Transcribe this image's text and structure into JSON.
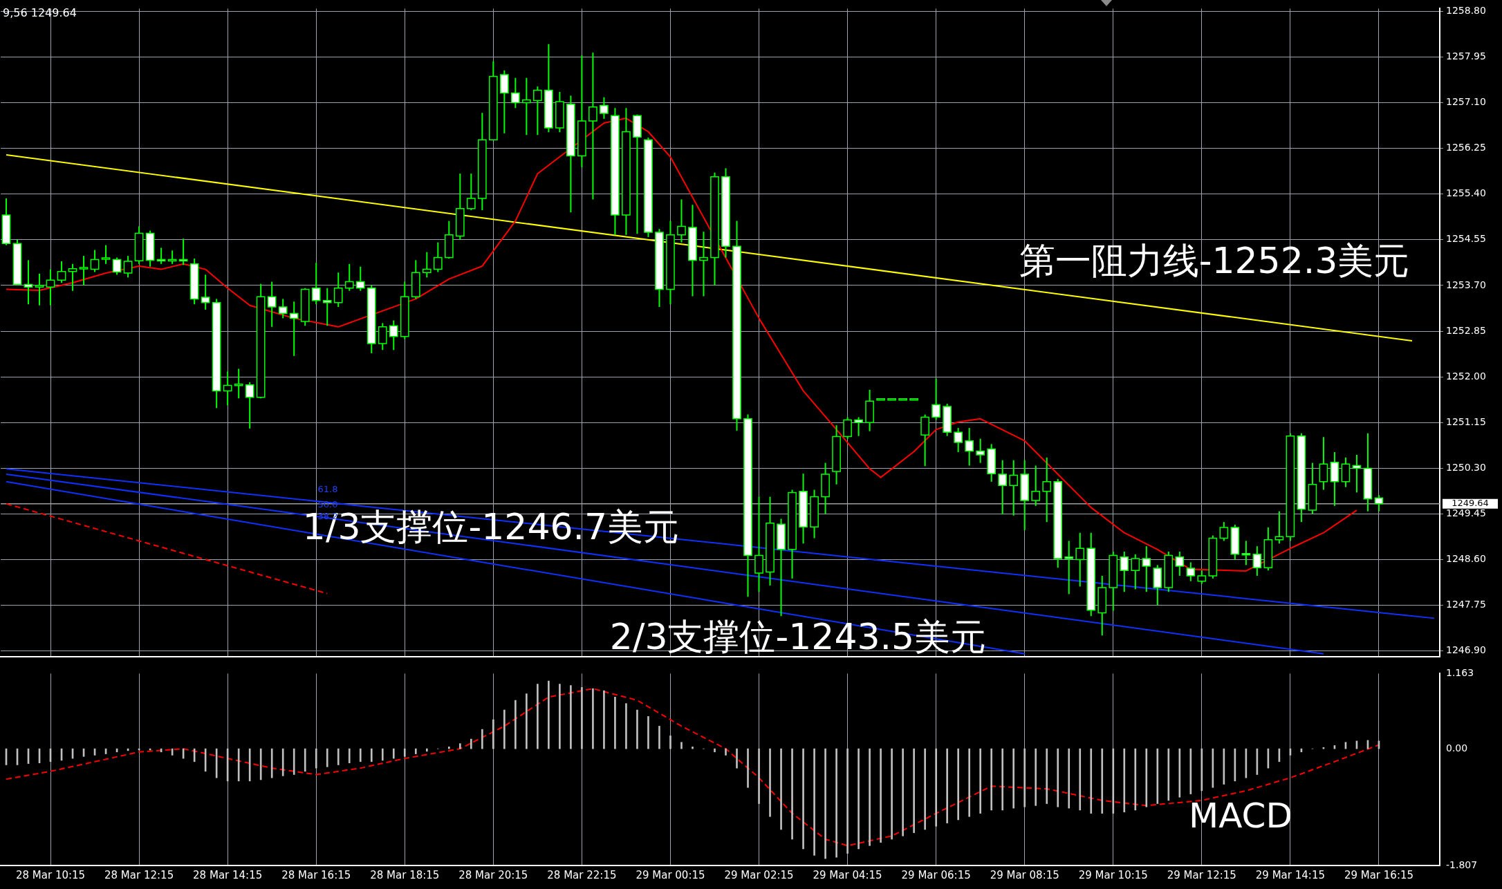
{
  "chart_data": [
    {
      "type": "candlestick",
      "color": "#00ff00",
      "colors": [
        "#ffffff",
        "#ffffff",
        "#ffffff",
        "#000000",
        "#000000",
        "#000000",
        "#000000",
        "#000000",
        "#000000",
        "#000000",
        "#ffffff",
        "#000000",
        "#000000",
        "#ffffff",
        "#ffffff",
        "#000000",
        "#ffffff",
        "#ffffff",
        "#ffffff",
        "#ffffff",
        "#000000",
        "#000000",
        "#ffffff",
        "#000000",
        "#ffffff",
        "#ffffff",
        "#ffffff",
        "#000000",
        "#ffffff",
        "#ffffff",
        "#000000",
        "#000000",
        "#ffffff",
        "#ffffff",
        "#000000",
        "#ffffff",
        "#000000",
        "#000000",
        "#000000",
        "#000000",
        "#000000",
        "#000000",
        "#000000",
        "#000000",
        "#000000",
        "#ffffff",
        "#ffffff",
        "#000000",
        "#000000",
        "#ffffff",
        "#000000",
        "#ffffff",
        "#000000",
        "#000000",
        "#ffffff",
        "#ffffff",
        "#000000",
        "#ffffff",
        "#ffffff",
        "#ffffff",
        "#000000",
        "#000000",
        "#ffffff",
        "#000000",
        "#000000",
        "#ffffff",
        "#ffffff",
        "#ffffff",
        "#000000",
        "#000000",
        "#ffffff",
        "#000000",
        "#ffffff",
        "#000000",
        "#000000",
        "#000000",
        "#000000",
        "#ffffff",
        "#000000",
        "#000000",
        "#000000",
        "#000000",
        "#000000",
        "#000000",
        "#ffffff",
        "#ffffff",
        "#ffffff",
        "#ffffff",
        "#ffffff",
        "#ffffff",
        "#ffffff",
        "#000000",
        "#ffffff",
        "#000000",
        "#000000",
        "#ffffff",
        "#ffffff",
        "#000000",
        "#ffffff",
        "#000000",
        "#000000",
        "#ffffff",
        "#000000",
        "#ffffff",
        "#ffffff",
        "#000000",
        "#ffffff",
        "#ffffff",
        "#000000",
        "#000000",
        "#000000",
        "#ffffff",
        "#ffffff",
        "#ffffff",
        "#000000",
        "#000000",
        "#000000",
        "#ffffff",
        "#000000",
        "#000000",
        "#ffffff",
        "#000000",
        "#ffffff",
        "#ffffff",
        "#ffffff",
        null,
        null,
        null,
        null,
        null
      ],
      "ohlc": [
        [
          1255.01,
          1255.32,
          1254.45,
          1254.48
        ],
        [
          1254.48,
          1254.55,
          1253.7,
          1253.72
        ],
        [
          1253.72,
          1254.17,
          1253.35,
          1253.67
        ],
        [
          1253.67,
          1253.92,
          1253.33,
          1253.7
        ],
        [
          1253.67,
          1254.0,
          1253.33,
          1253.8
        ],
        [
          1253.8,
          1254.15,
          1253.75,
          1253.96
        ],
        [
          1253.96,
          1254.1,
          1253.6,
          1254.01
        ],
        [
          1254.01,
          1254.25,
          1253.7,
          1254.02
        ],
        [
          1254.0,
          1254.36,
          1253.95,
          1254.18
        ],
        [
          1254.18,
          1254.45,
          1254.1,
          1254.2
        ],
        [
          1254.18,
          1254.22,
          1253.9,
          1253.95
        ],
        [
          1253.93,
          1254.25,
          1253.85,
          1254.15
        ],
        [
          1254.16,
          1254.8,
          1254.1,
          1254.67
        ],
        [
          1254.67,
          1254.72,
          1254.05,
          1254.17
        ],
        [
          1254.17,
          1254.4,
          1254.1,
          1254.15
        ],
        [
          1254.15,
          1254.35,
          1254.1,
          1254.17
        ],
        [
          1254.17,
          1254.57,
          1254.08,
          1254.15
        ],
        [
          1254.1,
          1254.2,
          1253.35,
          1253.45
        ],
        [
          1253.48,
          1253.9,
          1253.25,
          1253.38
        ],
        [
          1253.38,
          1253.45,
          1251.42,
          1251.74
        ],
        [
          1251.74,
          1252.1,
          1251.47,
          1251.84
        ],
        [
          1251.84,
          1252.15,
          1251.6,
          1251.85
        ],
        [
          1251.85,
          1251.9,
          1251.04,
          1251.62
        ],
        [
          1251.62,
          1253.73,
          1251.6,
          1253.49
        ],
        [
          1253.49,
          1253.77,
          1252.93,
          1253.3
        ],
        [
          1253.3,
          1253.45,
          1253.09,
          1253.18
        ],
        [
          1253.18,
          1253.4,
          1252.39,
          1253.09
        ],
        [
          1253.03,
          1253.65,
          1252.95,
          1253.63
        ],
        [
          1253.65,
          1254.12,
          1253.35,
          1253.42
        ],
        [
          1253.42,
          1253.65,
          1252.95,
          1253.38
        ],
        [
          1253.38,
          1253.94,
          1253.3,
          1253.65
        ],
        [
          1253.65,
          1254.1,
          1253.6,
          1253.77
        ],
        [
          1253.77,
          1254.05,
          1253.6,
          1253.65
        ],
        [
          1253.65,
          1253.7,
          1252.44,
          1252.62
        ],
        [
          1252.62,
          1253.0,
          1252.5,
          1252.93
        ],
        [
          1252.95,
          1253.05,
          1252.5,
          1252.75
        ],
        [
          1252.75,
          1253.77,
          1252.7,
          1253.49
        ],
        [
          1253.49,
          1254.17,
          1253.45,
          1253.94
        ],
        [
          1253.94,
          1254.32,
          1253.85,
          1254.0
        ],
        [
          1254.0,
          1254.5,
          1253.95,
          1254.22
        ],
        [
          1254.22,
          1254.9,
          1254.2,
          1254.64
        ],
        [
          1254.62,
          1255.78,
          1254.55,
          1255.13
        ],
        [
          1255.13,
          1255.78,
          1255.1,
          1255.32
        ],
        [
          1255.32,
          1256.91,
          1255.1,
          1256.41
        ],
        [
          1256.41,
          1257.87,
          1256.4,
          1257.59
        ],
        [
          1257.62,
          1257.7,
          1256.53,
          1257.28
        ],
        [
          1257.28,
          1257.56,
          1257.0,
          1257.1
        ],
        [
          1257.1,
          1257.56,
          1256.5,
          1257.15
        ],
        [
          1257.14,
          1257.4,
          1256.5,
          1257.33
        ],
        [
          1257.33,
          1258.19,
          1256.55,
          1256.63
        ],
        [
          1256.63,
          1257.3,
          1256.55,
          1257.12
        ],
        [
          1257.07,
          1257.23,
          1255.06,
          1256.11
        ],
        [
          1256.11,
          1257.98,
          1255.9,
          1256.76
        ],
        [
          1256.76,
          1258.03,
          1255.3,
          1257.02
        ],
        [
          1257.05,
          1257.2,
          1256.8,
          1256.9
        ],
        [
          1256.86,
          1257.0,
          1254.64,
          1255.01
        ],
        [
          1255.01,
          1257.0,
          1254.64,
          1256.56
        ],
        [
          1256.86,
          1256.88,
          1254.66,
          1256.46
        ],
        [
          1256.41,
          1256.45,
          1254.6,
          1254.69
        ],
        [
          1254.69,
          1254.75,
          1253.3,
          1253.63
        ],
        [
          1253.63,
          1254.9,
          1253.35,
          1254.64
        ],
        [
          1254.64,
          1255.3,
          1254.5,
          1254.8
        ],
        [
          1254.78,
          1255.2,
          1253.5,
          1254.17
        ],
        [
          1254.17,
          1254.7,
          1253.5,
          1254.22
        ],
        [
          1254.22,
          1255.8,
          1253.7,
          1255.72
        ],
        [
          1255.72,
          1255.88,
          1254.22,
          1254.43
        ],
        [
          1254.43,
          1254.9,
          1251.0,
          1251.22
        ],
        [
          1251.22,
          1251.3,
          1247.91,
          1248.68
        ],
        [
          1248.35,
          1249.77,
          1248.0,
          1248.68
        ],
        [
          1248.37,
          1249.77,
          1248.12,
          1249.28
        ],
        [
          1249.26,
          1249.36,
          1247.55,
          1248.79
        ],
        [
          1248.79,
          1249.9,
          1248.25,
          1249.85
        ],
        [
          1249.87,
          1250.2,
          1248.9,
          1249.21
        ],
        [
          1249.21,
          1249.9,
          1249.0,
          1249.77
        ],
        [
          1249.77,
          1250.4,
          1249.45,
          1250.19
        ],
        [
          1250.24,
          1251.1,
          1250.0,
          1250.89
        ],
        [
          1250.89,
          1251.25,
          1250.85,
          1251.2
        ],
        [
          1251.2,
          1251.25,
          1250.9,
          1251.15
        ],
        [
          1251.15,
          1251.76,
          1250.99,
          1251.55
        ],
        [
          1251.58,
          1251.58,
          1251.58,
          1251.58
        ],
        [
          1251.58,
          1251.58,
          1251.58,
          1251.58
        ],
        [
          1251.58,
          1251.58,
          1251.58,
          1251.58
        ],
        [
          1251.58,
          1251.58,
          1251.58,
          1251.58
        ],
        [
          1250.92,
          1251.3,
          1250.34,
          1251.25
        ],
        [
          1251.48,
          1251.97,
          1251.2,
          1251.25
        ],
        [
          1251.45,
          1251.5,
          1250.9,
          1250.97
        ],
        [
          1250.97,
          1251.05,
          1250.6,
          1250.78
        ],
        [
          1250.81,
          1251.05,
          1250.35,
          1250.62
        ],
        [
          1250.62,
          1250.85,
          1250.4,
          1250.55
        ],
        [
          1250.66,
          1250.75,
          1250.05,
          1250.2
        ],
        [
          1250.19,
          1250.45,
          1249.44,
          1249.98
        ],
        [
          1249.98,
          1250.45,
          1249.42,
          1250.17
        ],
        [
          1250.19,
          1250.45,
          1249.15,
          1249.7
        ],
        [
          1249.7,
          1250.35,
          1249.6,
          1249.87
        ],
        [
          1249.87,
          1250.5,
          1249.3,
          1250.05
        ],
        [
          1250.05,
          1250.1,
          1248.45,
          1248.62
        ],
        [
          1248.65,
          1248.95,
          1247.96,
          1248.62
        ],
        [
          1248.6,
          1249.1,
          1248.1,
          1248.81
        ],
        [
          1248.81,
          1249.1,
          1247.55,
          1247.66
        ],
        [
          1247.61,
          1248.3,
          1247.19,
          1248.08
        ],
        [
          1248.08,
          1248.75,
          1247.65,
          1248.68
        ],
        [
          1248.65,
          1248.75,
          1248.0,
          1248.4
        ],
        [
          1248.4,
          1248.7,
          1248.05,
          1248.62
        ],
        [
          1248.62,
          1248.85,
          1248.0,
          1248.48
        ],
        [
          1248.44,
          1248.5,
          1247.75,
          1248.08
        ],
        [
          1248.08,
          1248.75,
          1248.0,
          1248.68
        ],
        [
          1248.65,
          1248.75,
          1248.3,
          1248.48
        ],
        [
          1248.44,
          1248.55,
          1248.2,
          1248.3
        ],
        [
          1248.2,
          1248.4,
          1248.15,
          1248.3
        ],
        [
          1248.3,
          1249.05,
          1248.25,
          1249.0
        ],
        [
          1249.0,
          1249.3,
          1248.95,
          1249.2
        ],
        [
          1249.2,
          1249.25,
          1248.6,
          1248.7
        ],
        [
          1248.7,
          1248.95,
          1248.5,
          1248.68
        ],
        [
          1248.7,
          1248.85,
          1248.3,
          1248.45
        ],
        [
          1248.45,
          1249.2,
          1248.4,
          1248.97
        ],
        [
          1248.97,
          1249.5,
          1248.9,
          1249.03
        ],
        [
          1249.03,
          1250.95,
          1248.95,
          1250.9
        ],
        [
          1250.9,
          1250.95,
          1249.3,
          1249.54
        ],
        [
          1249.52,
          1250.4,
          1249.45,
          1250.0
        ],
        [
          1250.05,
          1250.88,
          1249.9,
          1250.38
        ],
        [
          1250.41,
          1250.6,
          1249.6,
          1250.05
        ],
        [
          1250.05,
          1250.5,
          1249.95,
          1250.38
        ],
        [
          1250.35,
          1250.55,
          1249.85,
          1250.3
        ],
        [
          1250.3,
          1250.95,
          1249.5,
          1249.73
        ],
        [
          1249.75,
          1249.8,
          1249.5,
          1249.64
        ],
        null,
        null,
        null,
        null,
        null
      ],
      "series": [
        {
          "type": "line",
          "color": "#ff0000",
          "values": [
            1253.63,
            null,
            null,
            1253.61,
            null,
            null,
            1253.75,
            null,
            null,
            1253.93,
            null,
            null,
            1254.06,
            null,
            1254.0,
            null,
            1254.1,
            null,
            1254.0,
            null,
            1253.65,
            null,
            1253.33,
            null,
            null,
            null,
            1253.09,
            null,
            null,
            null,
            1252.93,
            null,
            null,
            null,
            null,
            null,
            null,
            1253.45,
            null,
            null,
            1253.82,
            null,
            null,
            1254.06,
            null,
            null,
            1254.9,
            null,
            1255.78,
            null,
            null,
            null,
            null,
            null,
            1256.72,
            null,
            1256.81,
            null,
            1256.56,
            null,
            1256.09,
            null,
            null,
            null,
            null,
            null,
            null,
            null,
            1253.09,
            null,
            null,
            null,
            1251.74,
            null,
            null,
            1251.02,
            null,
            null,
            1250.29,
            1250.13,
            null,
            null,
            1250.61,
            null,
            1251.02,
            null,
            1251.16,
            null,
            1251.22,
            null,
            null,
            null,
            1250.81,
            null,
            null,
            1250.19,
            null,
            null,
            1249.57,
            null,
            null,
            1249.1,
            null,
            null,
            1248.79,
            null,
            null,
            1248.42,
            null,
            null,
            null,
            null,
            1248.39,
            null,
            null,
            null,
            1248.81,
            null,
            null,
            1249.1,
            null,
            null,
            1249.52,
            null,
            null,
            null,
            null,
            null,
            null,
            null
          ]
        },
        {
          "type": "line",
          "color": "#ffff00",
          "values": [
            1256.13,
            null,
            null,
            null,
            null,
            null,
            null,
            null,
            null,
            null,
            null,
            null,
            null,
            null,
            null,
            null,
            null,
            null,
            null,
            null,
            null,
            null,
            null,
            null,
            null,
            null,
            null,
            null,
            null,
            null,
            null,
            null,
            null,
            null,
            null,
            null,
            null,
            null,
            null,
            null,
            null,
            null,
            null,
            null,
            null,
            null,
            null,
            null,
            null,
            null,
            null,
            null,
            null,
            null,
            null,
            null,
            null,
            null,
            null,
            null,
            null,
            null,
            null,
            null,
            null,
            null,
            null,
            null,
            null,
            null,
            null,
            null,
            null,
            null,
            null,
            null,
            null,
            null,
            null,
            null,
            null,
            null,
            null,
            null,
            null,
            null,
            null,
            null,
            null,
            null,
            null,
            null,
            null,
            null,
            null,
            null,
            null,
            null,
            null,
            null,
            null,
            null,
            null,
            null,
            null,
            null,
            null,
            null,
            null,
            null,
            null,
            null,
            null,
            null,
            null,
            null,
            null,
            null,
            null,
            null,
            null,
            null,
            null,
            null,
            null,
            null,
            null,
            1252.67,
            null,
            null
          ]
        },
        {
          "type": "line",
          "color": "#1030ff",
          "values": [
            1250.29,
            null,
            null,
            null,
            null,
            null,
            null,
            null,
            null,
            null,
            null,
            null,
            null,
            null,
            null,
            null,
            null,
            null,
            null,
            null,
            null,
            null,
            null,
            null,
            null,
            null,
            null,
            null,
            null,
            null,
            null,
            null,
            null,
            null,
            null,
            null,
            null,
            null,
            null,
            null,
            null,
            null,
            null,
            null,
            null,
            null,
            null,
            null,
            null,
            null,
            null,
            null,
            null,
            null,
            null,
            null,
            null,
            null,
            null,
            null,
            null,
            null,
            null,
            null,
            null,
            null,
            null,
            null,
            null,
            null,
            null,
            null,
            null,
            null,
            null,
            null,
            null,
            null,
            null,
            null,
            null,
            null,
            null,
            null,
            null,
            null,
            null,
            null,
            null,
            null,
            null,
            null,
            null,
            null,
            null,
            null,
            null,
            null,
            null,
            null,
            null,
            null,
            null,
            null,
            null,
            null,
            null,
            null,
            null,
            null,
            null,
            null,
            null,
            null,
            null,
            null,
            null,
            null,
            null,
            null,
            null,
            null,
            null,
            null,
            null,
            null,
            null,
            null,
            null,
            1247.51
          ]
        },
        {
          "type": "line",
          "color": "#1030ff",
          "values": [
            1250.19,
            null,
            null,
            null,
            null,
            null,
            null,
            null,
            null,
            null,
            null,
            null,
            null,
            null,
            null,
            null,
            null,
            null,
            null,
            null,
            null,
            null,
            null,
            null,
            null,
            null,
            null,
            null,
            null,
            null,
            null,
            null,
            null,
            null,
            null,
            null,
            null,
            null,
            null,
            null,
            null,
            null,
            null,
            null,
            null,
            null,
            null,
            null,
            null,
            null,
            null,
            null,
            null,
            null,
            null,
            null,
            null,
            null,
            null,
            null,
            null,
            null,
            null,
            null,
            null,
            null,
            null,
            null,
            null,
            null,
            null,
            null,
            null,
            null,
            null,
            null,
            null,
            null,
            null,
            null,
            null,
            null,
            null,
            null,
            null,
            null,
            null,
            null,
            null,
            null,
            null,
            null,
            null,
            null,
            null,
            null,
            null,
            null,
            null,
            null,
            null,
            null,
            null,
            null,
            null,
            null,
            null,
            null,
            null,
            null,
            null,
            null,
            null,
            null,
            null,
            null,
            null,
            null,
            null,
            1246.85,
            null,
            null,
            null,
            null,
            null,
            null,
            null,
            null,
            null,
            null
          ]
        },
        {
          "type": "line",
          "color": "#1030ff",
          "values": [
            1250.05,
            null,
            null,
            null,
            null,
            null,
            null,
            null,
            null,
            null,
            null,
            null,
            null,
            null,
            null,
            null,
            null,
            null,
            null,
            null,
            null,
            null,
            null,
            null,
            null,
            null,
            null,
            null,
            null,
            null,
            null,
            null,
            null,
            null,
            null,
            null,
            null,
            null,
            null,
            null,
            null,
            null,
            null,
            null,
            null,
            null,
            null,
            null,
            null,
            null,
            null,
            null,
            null,
            null,
            null,
            null,
            null,
            null,
            null,
            null,
            null,
            null,
            null,
            null,
            null,
            null,
            null,
            null,
            null,
            null,
            null,
            null,
            null,
            null,
            null,
            null,
            null,
            null,
            null,
            null,
            null,
            null,
            null,
            null,
            null,
            null,
            null,
            null,
            null,
            null,
            null,
            null,
            1246.85,
            null,
            null,
            null,
            null,
            null,
            null,
            null,
            null,
            null,
            null,
            null,
            null,
            null,
            null,
            null,
            null,
            null,
            null,
            null,
            null,
            null,
            null,
            null,
            null,
            null,
            null,
            null,
            null,
            null,
            null,
            null,
            null,
            null,
            null,
            null,
            null,
            null
          ]
        },
        {
          "type": "line",
          "color": "#ff0000",
          "line_style": "dashed",
          "values": [
            1249.64,
            null,
            null,
            null,
            null,
            null,
            null,
            null,
            null,
            null,
            null,
            null,
            null,
            null,
            null,
            null,
            null,
            null,
            null,
            null,
            null,
            null,
            null,
            null,
            null,
            null,
            null,
            null,
            null,
            1247.97,
            null,
            null,
            null,
            null,
            null,
            null,
            null,
            null,
            null,
            null,
            null,
            null,
            null,
            null,
            null,
            null,
            null,
            null,
            null,
            null,
            null,
            null,
            null,
            null,
            null,
            null,
            null,
            null,
            null,
            null,
            null,
            null,
            null,
            null,
            null,
            null,
            null,
            null,
            null,
            null,
            null,
            null,
            null,
            null,
            null,
            null,
            null,
            null,
            null,
            null,
            null,
            null,
            null,
            null,
            null,
            null,
            null,
            null,
            null,
            null,
            null,
            null,
            null,
            null,
            null,
            null,
            null,
            null,
            null,
            null,
            null,
            null,
            null,
            null,
            null,
            null,
            null,
            null,
            null,
            null,
            null,
            null,
            null,
            null,
            null,
            null,
            null,
            null,
            null,
            null,
            null,
            null,
            null,
            null,
            null,
            null,
            null,
            null,
            null,
            null
          ]
        }
      ],
      "ylim": [
        1246.8,
        1258.85
      ],
      "yticks": [
        {
          "value": 1246.9,
          "label": "1246.90"
        },
        {
          "value": 1247.75,
          "label": "1247.75"
        },
        {
          "value": 1248.6,
          "label": "1248.60"
        },
        {
          "value": 1249.45,
          "label": "1249.45"
        },
        {
          "value": 1250.3,
          "label": "1250.30"
        },
        {
          "value": 1251.15,
          "label": "1251.15"
        },
        {
          "value": 1252.0,
          "label": "1252.00"
        },
        {
          "value": 1252.85,
          "label": "1252.85"
        },
        {
          "value": 1253.7,
          "label": "1253.70"
        },
        {
          "value": 1254.55,
          "label": "1254.55"
        },
        {
          "value": 1255.4,
          "label": "1255.40"
        },
        {
          "value": 1256.25,
          "label": "1256.25"
        },
        {
          "value": 1257.1,
          "label": "1257.10"
        },
        {
          "value": 1257.95,
          "label": "1257.95"
        },
        {
          "value": 1258.8,
          "label": "1258.80"
        }
      ],
      "grid": true,
      "tick_labels": "y",
      "ref_lines": [
        {
          "axis": "y",
          "value": 1249.64,
          "label": "1249.64",
          "color": "#a0a0a0"
        }
      ],
      "annotations": [
        "9,56 1249.64",
        "第一阻力线-1252.3美元",
        "1/3支撑位-1246.7美元",
        "2/3支撑位-1243.5美元",
        "61.8",
        "50.0",
        "38.2"
      ]
    },
    {
      "type": "bar",
      "categories": [
        null,
        null,
        null,
        null,
        "28 Mar 10:15",
        null,
        null,
        null,
        null,
        null,
        null,
        null,
        "28 Mar 12:15",
        null,
        null,
        null,
        null,
        null,
        null,
        null,
        "28 Mar 14:15",
        null,
        null,
        null,
        null,
        null,
        null,
        null,
        "28 Mar 16:15",
        null,
        null,
        null,
        null,
        null,
        null,
        null,
        "28 Mar 18:15",
        null,
        null,
        null,
        null,
        null,
        null,
        null,
        "28 Mar 20:15",
        null,
        null,
        null,
        null,
        null,
        null,
        null,
        "28 Mar 22:15",
        null,
        null,
        null,
        null,
        null,
        null,
        null,
        "29 Mar 00:15",
        null,
        null,
        null,
        null,
        null,
        null,
        null,
        "29 Mar 02:15",
        null,
        null,
        null,
        null,
        null,
        null,
        null,
        "29 Mar 04:15",
        null,
        null,
        null,
        null,
        null,
        null,
        null,
        "29 Mar 06:15",
        null,
        null,
        null,
        null,
        null,
        null,
        null,
        "29 Mar 08:15",
        null,
        null,
        null,
        null,
        null,
        null,
        null,
        "29 Mar 10:15",
        null,
        null,
        null,
        null,
        null,
        null,
        null,
        "29 Mar 12:15",
        null,
        null,
        null,
        null,
        null,
        null,
        null,
        "29 Mar 14:15",
        null,
        null,
        null,
        null,
        null,
        null,
        null,
        "29 Mar 16:15",
        null,
        null,
        null,
        null,
        null
      ],
      "series": [
        {
          "type": "bar",
          "color": "#c0c0c0",
          "values": [
            -0.25,
            -0.25,
            -0.23,
            -0.22,
            -0.2,
            -0.18,
            -0.15,
            -0.12,
            -0.1,
            -0.08,
            -0.05,
            -0.03,
            -0.02,
            -0.02,
            -0.05,
            -0.1,
            -0.15,
            -0.2,
            -0.35,
            -0.45,
            -0.5,
            -0.5,
            -0.5,
            -0.48,
            -0.45,
            -0.42,
            -0.4,
            -0.35,
            -0.3,
            -0.28,
            -0.25,
            -0.22,
            -0.2,
            -0.2,
            -0.18,
            -0.15,
            -0.12,
            -0.08,
            -0.04,
            0.0,
            0.03,
            0.08,
            0.15,
            0.3,
            0.45,
            0.6,
            0.75,
            0.85,
            1.0,
            1.05,
            1.0,
            0.98,
            0.95,
            0.93,
            0.9,
            0.8,
            0.7,
            0.6,
            0.5,
            0.35,
            0.2,
            0.1,
            0.03,
            0.0,
            -0.05,
            -0.1,
            -0.3,
            -0.6,
            -0.85,
            -1.05,
            -1.25,
            -1.4,
            -1.55,
            -1.65,
            -1.7,
            -1.68,
            -1.62,
            -1.55,
            -1.5,
            -1.45,
            -1.4,
            -1.35,
            -1.3,
            -1.25,
            -1.2,
            -1.15,
            -1.1,
            -1.05,
            -1.0,
            -0.95,
            -0.95,
            -0.92,
            -0.9,
            -0.88,
            -0.85,
            -0.9,
            -0.92,
            -0.95,
            -1.0,
            -1.0,
            -1.0,
            -0.98,
            -0.95,
            -0.9,
            -0.85,
            -0.8,
            -0.75,
            -0.7,
            -0.65,
            -0.6,
            -0.55,
            -0.5,
            -0.45,
            -0.4,
            -0.3,
            -0.2,
            -0.1,
            -0.05,
            0.0,
            0.02,
            0.05,
            0.1,
            0.12,
            0.13,
            0.12,
            null,
            null,
            null,
            null,
            null
          ]
        },
        {
          "type": "line",
          "color": "#ff0000",
          "line_style": "dashed",
          "values": [
            -0.47,
            null,
            null,
            null,
            -0.35,
            null,
            null,
            null,
            -0.2,
            null,
            null,
            null,
            -0.05,
            null,
            null,
            null,
            0.0,
            null,
            null,
            null,
            -0.15,
            null,
            null,
            null,
            -0.3,
            null,
            null,
            null,
            -0.4,
            null,
            null,
            null,
            -0.3,
            null,
            null,
            null,
            -0.15,
            null,
            null,
            null,
            null,
            0.0,
            null,
            null,
            null,
            0.35,
            null,
            null,
            null,
            0.8,
            null,
            null,
            null,
            0.93,
            null,
            null,
            null,
            0.75,
            null,
            null,
            null,
            0.35,
            null,
            null,
            null,
            0.0,
            null,
            null,
            -0.45,
            null,
            null,
            -1.0,
            null,
            null,
            -1.4,
            null,
            -1.5,
            null,
            null,
            null,
            -1.35,
            null,
            null,
            null,
            -1.0,
            null,
            null,
            null,
            null,
            -0.58,
            null,
            null,
            null,
            null,
            -0.62,
            null,
            null,
            null,
            null,
            -0.8,
            null,
            null,
            null,
            -0.88,
            null,
            null,
            null,
            null,
            -0.8,
            null,
            null,
            null,
            -0.65,
            null,
            null,
            null,
            -0.45,
            null,
            null,
            null,
            -0.2,
            null,
            null,
            null,
            0.06,
            null,
            null,
            null,
            null,
            null
          ]
        }
      ],
      "ylim": [
        -1.807,
        1.163
      ],
      "yticks": [
        1.163,
        {
          "value": 0,
          "label": "0.00"
        },
        -1.807
      ],
      "grid": "x",
      "annotations": [
        "MACD"
      ]
    }
  ]
}
